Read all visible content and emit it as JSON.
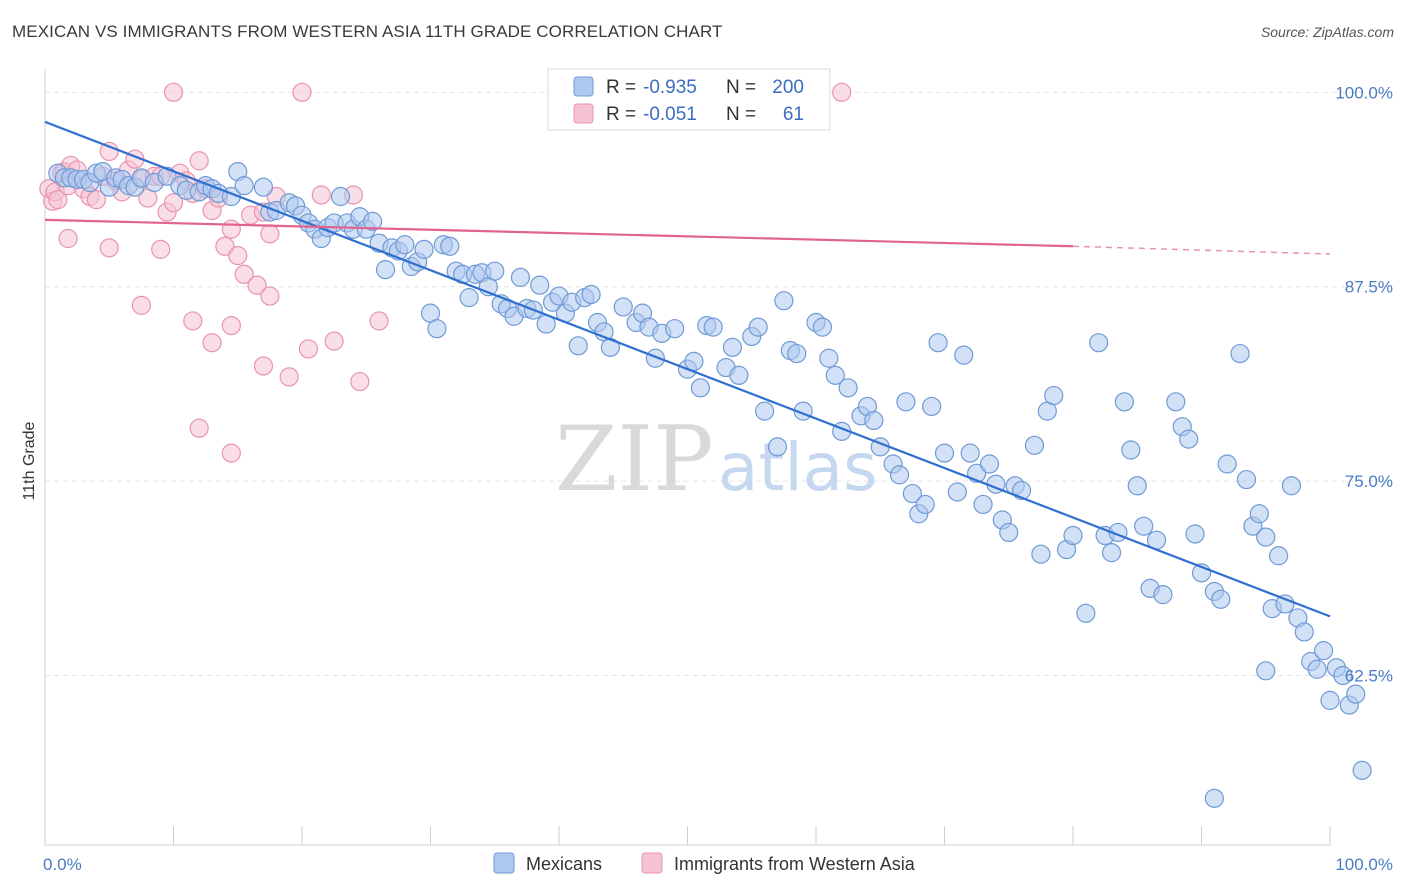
{
  "header": {
    "title": "MEXICAN VS IMMIGRANTS FROM WESTERN ASIA 11TH GRADE CORRELATION CHART",
    "source": "Source: ZipAtlas.com"
  },
  "watermark": {
    "zip": "ZIP",
    "atlas": "atlas"
  },
  "colors": {
    "blue_fill": "#aec9ef",
    "blue_stroke": "#6f9ad6",
    "blue_line": "#2f6fd0",
    "pink_fill": "#f6c3d3",
    "pink_stroke": "#e993b0",
    "pink_line": "#e0648f",
    "tick_text": "#4a7cc4",
    "grid": "#e3e3e3"
  },
  "legend": {
    "rows": [
      {
        "r_label": "R =",
        "r_value": "-0.935",
        "n_label": "N =",
        "n_value": "200"
      },
      {
        "r_label": "R =",
        "r_value": "-0.051",
        "n_label": "N =",
        "n_value": "61"
      }
    ]
  },
  "chart_data": {
    "type": "scatter",
    "xlabel": "",
    "ylabel": "11th Grade",
    "xlim": [
      0,
      100
    ],
    "ylim": [
      51.6,
      101.5
    ],
    "x_tick_labels": [
      "0.0%",
      "100.0%"
    ],
    "y_ticks": [
      100,
      87.5,
      75,
      62.5
    ],
    "y_tick_labels": [
      "100.0%",
      "87.5%",
      "75.0%",
      "62.5%"
    ],
    "series": [
      {
        "name": "Mexicans",
        "r": -0.935,
        "n": 200,
        "trend": {
          "x0": 0,
          "y0": 98.1,
          "x1": 100,
          "y1": 66.3
        },
        "points": [
          [
            1.0,
            94.8
          ],
          [
            1.5,
            94.5
          ],
          [
            2.0,
            94.5
          ],
          [
            2.5,
            94.4
          ],
          [
            3.0,
            94.4
          ],
          [
            3.5,
            94.2
          ],
          [
            4.0,
            94.8
          ],
          [
            4.5,
            94.9
          ],
          [
            5.0,
            93.9
          ],
          [
            5.5,
            94.5
          ],
          [
            6.0,
            94.4
          ],
          [
            6.5,
            94.0
          ],
          [
            7.0,
            93.9
          ],
          [
            7.5,
            94.5
          ],
          [
            8.5,
            94.2
          ],
          [
            9.5,
            94.6
          ],
          [
            10.5,
            94.0
          ],
          [
            11.0,
            93.7
          ],
          [
            12.0,
            93.6
          ],
          [
            12.5,
            94.0
          ],
          [
            13.0,
            93.8
          ],
          [
            13.5,
            93.5
          ],
          [
            14.5,
            93.3
          ],
          [
            15.0,
            94.9
          ],
          [
            15.5,
            94.0
          ],
          [
            17.0,
            93.9
          ],
          [
            17.5,
            92.3
          ],
          [
            18.0,
            92.4
          ],
          [
            19.0,
            92.9
          ],
          [
            19.5,
            92.7
          ],
          [
            20.0,
            92.1
          ],
          [
            20.5,
            91.6
          ],
          [
            21.0,
            91.2
          ],
          [
            21.5,
            90.6
          ],
          [
            22.0,
            91.3
          ],
          [
            22.5,
            91.6
          ],
          [
            23.0,
            93.3
          ],
          [
            23.5,
            91.6
          ],
          [
            24.0,
            91.2
          ],
          [
            24.5,
            92.0
          ],
          [
            25.0,
            91.2
          ],
          [
            25.5,
            91.7
          ],
          [
            26.0,
            90.3
          ],
          [
            26.5,
            88.6
          ],
          [
            27.0,
            90.0
          ],
          [
            27.5,
            89.8
          ],
          [
            28.0,
            90.2
          ],
          [
            28.5,
            88.8
          ],
          [
            29.0,
            89.1
          ],
          [
            29.5,
            89.9
          ],
          [
            30.0,
            85.8
          ],
          [
            30.5,
            84.8
          ],
          [
            31.0,
            90.2
          ],
          [
            31.5,
            90.1
          ],
          [
            32.0,
            88.5
          ],
          [
            32.5,
            88.3
          ],
          [
            33.0,
            86.8
          ],
          [
            33.5,
            88.3
          ],
          [
            34.0,
            88.4
          ],
          [
            34.5,
            87.5
          ],
          [
            35.0,
            88.5
          ],
          [
            35.5,
            86.4
          ],
          [
            36.0,
            86.1
          ],
          [
            36.5,
            85.6
          ],
          [
            37.0,
            88.1
          ],
          [
            37.5,
            86.1
          ],
          [
            38.0,
            86.0
          ],
          [
            38.5,
            87.6
          ],
          [
            39.0,
            85.1
          ],
          [
            39.5,
            86.5
          ],
          [
            40.0,
            86.9
          ],
          [
            40.5,
            85.8
          ],
          [
            41.0,
            86.5
          ],
          [
            41.5,
            83.7
          ],
          [
            42.0,
            86.8
          ],
          [
            42.5,
            87.0
          ],
          [
            43.0,
            85.2
          ],
          [
            43.5,
            84.6
          ],
          [
            44.0,
            83.6
          ],
          [
            45.0,
            86.2
          ],
          [
            46.0,
            85.2
          ],
          [
            46.5,
            85.8
          ],
          [
            47.0,
            84.9
          ],
          [
            47.5,
            82.9
          ],
          [
            48.0,
            84.5
          ],
          [
            49.0,
            84.8
          ],
          [
            50.0,
            82.2
          ],
          [
            50.5,
            82.7
          ],
          [
            51.0,
            81.0
          ],
          [
            51.5,
            85.0
          ],
          [
            52.0,
            84.9
          ],
          [
            53.0,
            82.3
          ],
          [
            53.5,
            83.6
          ],
          [
            54.0,
            81.8
          ],
          [
            55.0,
            84.3
          ],
          [
            55.5,
            84.9
          ],
          [
            56.0,
            79.5
          ],
          [
            57.0,
            77.2
          ],
          [
            57.5,
            86.6
          ],
          [
            58.0,
            83.4
          ],
          [
            58.5,
            83.2
          ],
          [
            59.0,
            79.5
          ],
          [
            60.0,
            85.2
          ],
          [
            60.5,
            84.9
          ],
          [
            61.0,
            82.9
          ],
          [
            61.5,
            81.8
          ],
          [
            62.0,
            78.2
          ],
          [
            62.5,
            81.0
          ],
          [
            63.5,
            79.2
          ],
          [
            64.0,
            79.8
          ],
          [
            64.5,
            78.9
          ],
          [
            65.0,
            77.2
          ],
          [
            66.0,
            76.1
          ],
          [
            66.5,
            75.4
          ],
          [
            67.0,
            80.1
          ],
          [
            67.5,
            74.2
          ],
          [
            68.0,
            72.9
          ],
          [
            68.5,
            73.5
          ],
          [
            69.0,
            79.8
          ],
          [
            69.5,
            83.9
          ],
          [
            70.0,
            76.8
          ],
          [
            71.0,
            74.3
          ],
          [
            71.5,
            83.1
          ],
          [
            72.0,
            76.8
          ],
          [
            72.5,
            75.5
          ],
          [
            73.0,
            73.5
          ],
          [
            73.5,
            76.1
          ],
          [
            74.0,
            74.8
          ],
          [
            74.5,
            72.5
          ],
          [
            75.0,
            71.7
          ],
          [
            75.5,
            74.7
          ],
          [
            76.0,
            74.4
          ],
          [
            77.0,
            77.3
          ],
          [
            77.5,
            70.3
          ],
          [
            78.0,
            79.5
          ],
          [
            78.5,
            80.5
          ],
          [
            79.5,
            70.6
          ],
          [
            80.0,
            71.5
          ],
          [
            81.0,
            66.5
          ],
          [
            82.0,
            83.9
          ],
          [
            82.5,
            71.5
          ],
          [
            83.0,
            70.4
          ],
          [
            83.5,
            71.7
          ],
          [
            84.0,
            80.1
          ],
          [
            84.5,
            77.0
          ],
          [
            85.0,
            74.7
          ],
          [
            85.5,
            72.1
          ],
          [
            86.0,
            68.1
          ],
          [
            86.5,
            71.2
          ],
          [
            87.0,
            67.7
          ],
          [
            88.0,
            80.1
          ],
          [
            88.5,
            78.5
          ],
          [
            89.0,
            77.7
          ],
          [
            89.5,
            71.6
          ],
          [
            90.0,
            69.1
          ],
          [
            91.0,
            67.9
          ],
          [
            91.5,
            67.4
          ],
          [
            92.0,
            76.1
          ],
          [
            93.0,
            83.2
          ],
          [
            93.5,
            75.1
          ],
          [
            94.0,
            72.1
          ],
          [
            94.5,
            72.9
          ],
          [
            95.0,
            71.4
          ],
          [
            95.5,
            66.8
          ],
          [
            96.0,
            70.2
          ],
          [
            96.5,
            67.1
          ],
          [
            97.0,
            74.7
          ],
          [
            97.5,
            66.2
          ],
          [
            98.0,
            65.3
          ],
          [
            98.5,
            63.4
          ],
          [
            99.0,
            62.9
          ],
          [
            99.5,
            64.1
          ],
          [
            100.0,
            60.9
          ],
          [
            100.5,
            63.0
          ],
          [
            101.0,
            62.5
          ],
          [
            101.5,
            60.6
          ],
          [
            102.0,
            61.3
          ],
          [
            102.5,
            56.4
          ],
          [
            91.0,
            54.6
          ],
          [
            95.0,
            62.8
          ]
        ]
      },
      {
        "name": "Immigrants from Western Asia",
        "r": -0.051,
        "n": 61,
        "trend": {
          "x0": 0,
          "y0": 91.8,
          "x1": 80,
          "y1": 90.1,
          "dash_to_x": 100,
          "dash_to_y": 89.6
        },
        "points": [
          [
            0.3,
            93.8
          ],
          [
            0.6,
            93.0
          ],
          [
            0.8,
            93.6
          ],
          [
            1.0,
            93.1
          ],
          [
            1.3,
            94.8
          ],
          [
            1.5,
            94.9
          ],
          [
            1.8,
            94.0
          ],
          [
            2.0,
            95.3
          ],
          [
            2.5,
            95.0
          ],
          [
            3.0,
            93.8
          ],
          [
            3.5,
            93.3
          ],
          [
            4.0,
            93.1
          ],
          [
            4.5,
            94.6
          ],
          [
            5.0,
            96.2
          ],
          [
            5.5,
            94.3
          ],
          [
            6.0,
            93.6
          ],
          [
            6.5,
            95.0
          ],
          [
            7.0,
            95.7
          ],
          [
            7.5,
            94.4
          ],
          [
            8.0,
            93.2
          ],
          [
            8.5,
            94.6
          ],
          [
            9.0,
            94.6
          ],
          [
            9.5,
            92.3
          ],
          [
            10.0,
            92.9
          ],
          [
            10.5,
            94.8
          ],
          [
            11.0,
            94.3
          ],
          [
            11.5,
            93.5
          ],
          [
            12.0,
            95.6
          ],
          [
            12.5,
            93.8
          ],
          [
            13.0,
            92.4
          ],
          [
            13.5,
            93.2
          ],
          [
            14.0,
            90.1
          ],
          [
            14.5,
            91.2
          ],
          [
            15.0,
            89.5
          ],
          [
            15.5,
            88.3
          ],
          [
            16.0,
            92.1
          ],
          [
            16.5,
            87.6
          ],
          [
            17.0,
            92.3
          ],
          [
            17.5,
            90.9
          ],
          [
            18.0,
            93.3
          ],
          [
            1.8,
            90.6
          ],
          [
            5.0,
            90.0
          ],
          [
            7.5,
            86.3
          ],
          [
            9.0,
            89.9
          ],
          [
            11.5,
            85.3
          ],
          [
            13.0,
            83.9
          ],
          [
            14.5,
            85.0
          ],
          [
            17.0,
            82.4
          ],
          [
            19.0,
            81.7
          ],
          [
            20.5,
            83.5
          ],
          [
            22.5,
            84.0
          ],
          [
            24.5,
            81.4
          ],
          [
            26.0,
            85.3
          ],
          [
            12.0,
            78.4
          ],
          [
            14.5,
            76.8
          ],
          [
            17.5,
            86.9
          ],
          [
            21.5,
            93.4
          ],
          [
            24.0,
            93.4
          ],
          [
            10.0,
            100.0
          ],
          [
            20.0,
            100.0
          ],
          [
            62.0,
            100.0
          ]
        ]
      }
    ]
  },
  "bottom_legend": {
    "items": [
      {
        "label": "Mexicans"
      },
      {
        "label": "Immigrants from Western Asia"
      }
    ]
  }
}
